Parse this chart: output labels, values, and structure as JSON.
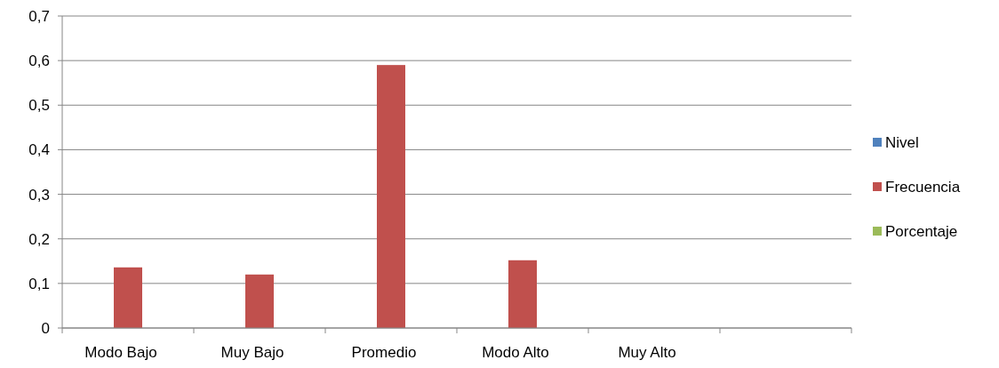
{
  "chart_data": {
    "type": "bar",
    "categories": [
      "Modo Bajo",
      "Muy Bajo",
      "Promedio",
      "Modo Alto",
      "Muy Alto",
      null
    ],
    "series": [
      {
        "name": "Nivel",
        "color": "#4f81bd",
        "values": [
          null,
          null,
          null,
          null,
          null,
          null
        ]
      },
      {
        "name": "Frecuencia",
        "color": "#c0504d",
        "values": [
          0.136,
          0.12,
          0.59,
          0.152,
          null,
          null
        ]
      },
      {
        "name": "Porcentaje",
        "color": "#9bbb59",
        "values": [
          null,
          null,
          null,
          null,
          null,
          null
        ]
      }
    ],
    "ylim": [
      0,
      0.7
    ],
    "yticks": [
      {
        "value": 0,
        "label": "0"
      },
      {
        "value": 0.1,
        "label": "0,1"
      },
      {
        "value": 0.2,
        "label": "0,2"
      },
      {
        "value": 0.3,
        "label": "0,3"
      },
      {
        "value": 0.4,
        "label": "0,4"
      },
      {
        "value": 0.5,
        "label": "0,5"
      },
      {
        "value": 0.6,
        "label": "0,6"
      },
      {
        "value": 0.7,
        "label": "0,7"
      }
    ],
    "grid": "y",
    "legend": "right"
  }
}
